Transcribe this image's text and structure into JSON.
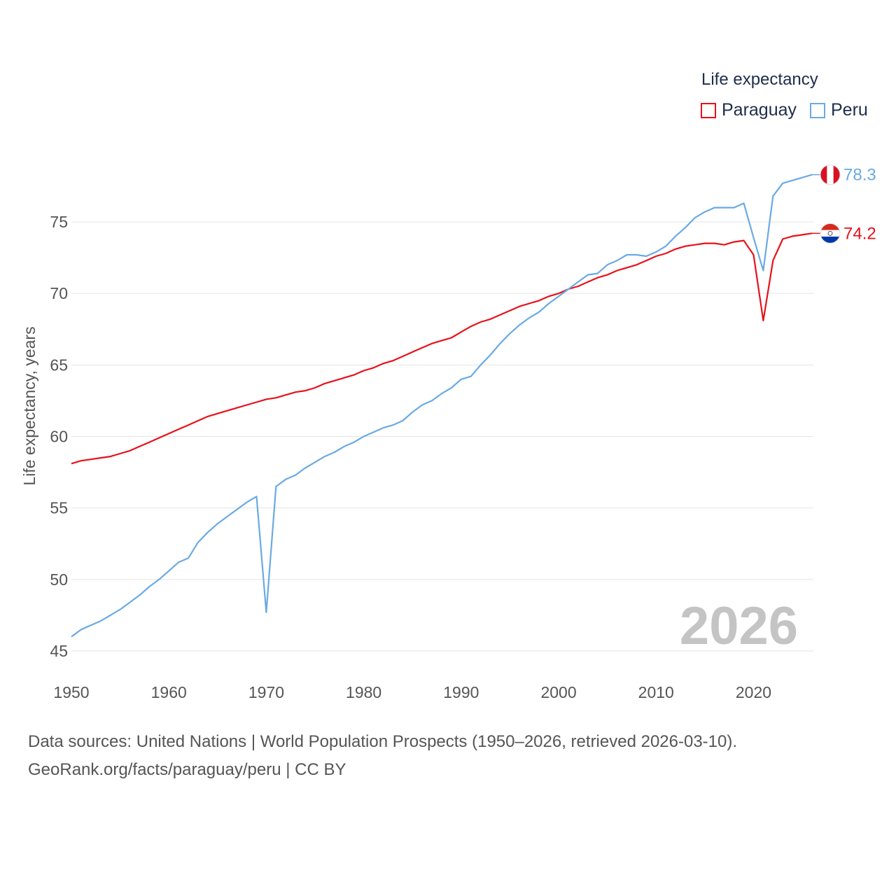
{
  "chart_data": {
    "type": "line",
    "title": "",
    "legend_title": "Life expectancy",
    "xlabel": "",
    "ylabel": "Life expectancy, years",
    "xlim": [
      1950,
      2026
    ],
    "ylim": [
      45,
      78.5
    ],
    "x_ticks": [
      1950,
      1960,
      1970,
      1980,
      1990,
      2000,
      2010,
      2020
    ],
    "y_ticks": [
      45,
      50,
      55,
      60,
      65,
      70,
      75
    ],
    "grid": true,
    "legend_position": "top-right",
    "year_label": "2026",
    "x": [
      1950,
      1951,
      1952,
      1953,
      1954,
      1955,
      1956,
      1957,
      1958,
      1959,
      1960,
      1961,
      1962,
      1963,
      1964,
      1965,
      1966,
      1967,
      1968,
      1969,
      1970,
      1971,
      1972,
      1973,
      1974,
      1975,
      1976,
      1977,
      1978,
      1979,
      1980,
      1981,
      1982,
      1983,
      1984,
      1985,
      1986,
      1987,
      1988,
      1989,
      1990,
      1991,
      1992,
      1993,
      1994,
      1995,
      1996,
      1997,
      1998,
      1999,
      2000,
      2001,
      2002,
      2003,
      2004,
      2005,
      2006,
      2007,
      2008,
      2009,
      2010,
      2011,
      2012,
      2013,
      2014,
      2015,
      2016,
      2017,
      2018,
      2019,
      2020,
      2021,
      2022,
      2023,
      2024,
      2025,
      2026
    ],
    "series": [
      {
        "name": "Paraguay",
        "color": "#e8111a",
        "end_label": "74.2",
        "flag": "paraguay-flag",
        "values": [
          58.1,
          58.3,
          58.4,
          58.5,
          58.6,
          58.8,
          59.0,
          59.3,
          59.6,
          59.9,
          60.2,
          60.5,
          60.8,
          61.1,
          61.4,
          61.6,
          61.8,
          62.0,
          62.2,
          62.4,
          62.6,
          62.7,
          62.9,
          63.1,
          63.2,
          63.4,
          63.7,
          63.9,
          64.1,
          64.3,
          64.6,
          64.8,
          65.1,
          65.3,
          65.6,
          65.9,
          66.2,
          66.5,
          66.7,
          66.9,
          67.3,
          67.7,
          68.0,
          68.2,
          68.5,
          68.8,
          69.1,
          69.3,
          69.5,
          69.8,
          70.0,
          70.3,
          70.5,
          70.8,
          71.1,
          71.3,
          71.6,
          71.8,
          72.0,
          72.3,
          72.6,
          72.8,
          73.1,
          73.3,
          73.4,
          73.5,
          73.5,
          73.4,
          73.6,
          73.7,
          72.7,
          68.1,
          72.3,
          73.8,
          74.0,
          74.1,
          74.2
        ]
      },
      {
        "name": "Peru",
        "color": "#6aaae4",
        "end_label": "78.3",
        "flag": "peru-flag",
        "values": [
          46.0,
          46.5,
          46.8,
          47.1,
          47.5,
          47.9,
          48.4,
          48.9,
          49.5,
          50.0,
          50.6,
          51.2,
          51.5,
          52.6,
          53.3,
          53.9,
          54.4,
          54.9,
          55.4,
          55.8,
          47.7,
          56.5,
          57.0,
          57.3,
          57.8,
          58.2,
          58.6,
          58.9,
          59.3,
          59.6,
          60.0,
          60.3,
          60.6,
          60.8,
          61.1,
          61.7,
          62.2,
          62.5,
          63.0,
          63.4,
          64.0,
          64.2,
          65.0,
          65.7,
          66.5,
          67.2,
          67.8,
          68.3,
          68.7,
          69.3,
          69.8,
          70.3,
          70.8,
          71.3,
          71.4,
          72.0,
          72.3,
          72.7,
          72.7,
          72.6,
          72.9,
          73.3,
          74.0,
          74.6,
          75.3,
          75.7,
          76.0,
          76.0,
          76.0,
          76.3,
          73.9,
          71.6,
          76.8,
          77.7,
          77.9,
          78.1,
          78.3
        ]
      }
    ]
  },
  "footer": {
    "line1": "Data sources: United Nations | World Population Prospects (1950–2026, retrieved 2026-03-10).",
    "line2": "GeoRank.org/facts/paraguay/peru | CC BY"
  }
}
